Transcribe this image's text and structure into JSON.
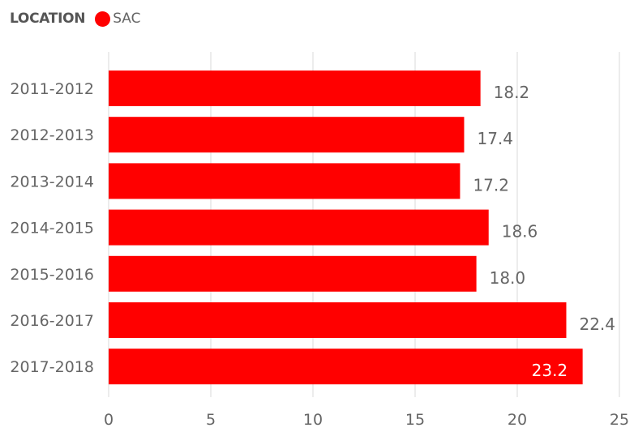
{
  "legend": {
    "title": "LOCATION",
    "items": [
      {
        "label": "SAC",
        "color": "#ff0000"
      }
    ]
  },
  "chart_data": {
    "type": "bar",
    "orientation": "horizontal",
    "categories": [
      "2011-2012",
      "2012-2013",
      "2013-2014",
      "2014-2015",
      "2015-2016",
      "2016-2017",
      "2017-2018"
    ],
    "series": [
      {
        "name": "SAC",
        "color": "#ff0000",
        "values": [
          18.2,
          17.4,
          17.2,
          18.6,
          18.0,
          22.4,
          23.2
        ],
        "labels": [
          "18.2",
          "17.4",
          "17.2",
          "18.6",
          "18.0",
          "22.4",
          "23.2"
        ]
      }
    ],
    "x_ticks": [
      "0",
      "5",
      "10",
      "15",
      "20",
      "25"
    ],
    "xlim": [
      0,
      25
    ],
    "grid": true,
    "legend_position": "top-left",
    "title": "",
    "xlabel": "",
    "ylabel": ""
  }
}
